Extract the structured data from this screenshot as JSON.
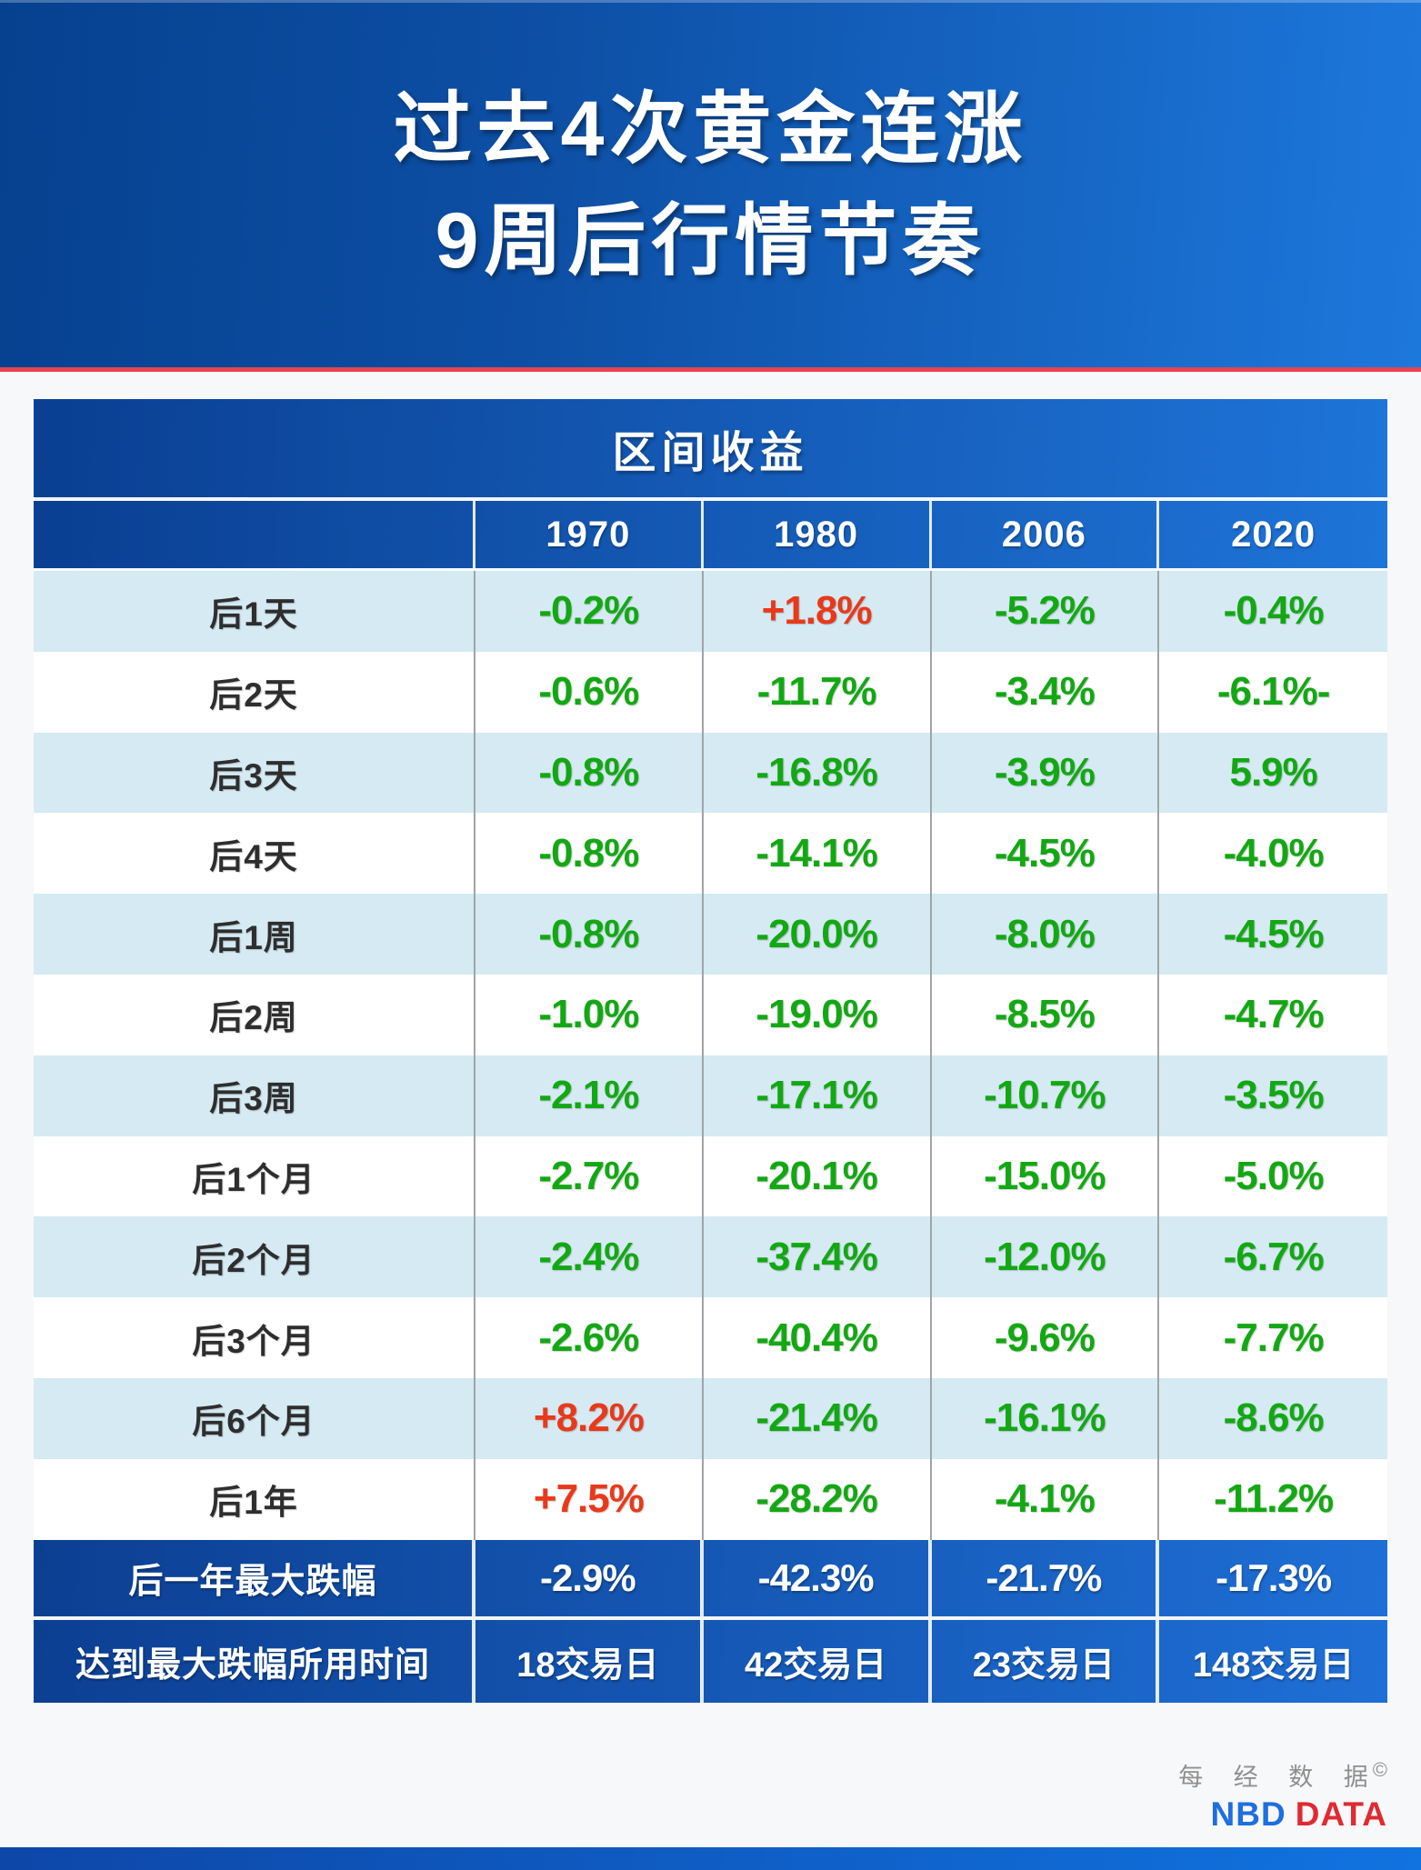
{
  "banner": {
    "line1": "过去4次黄金连涨",
    "line2": "9周后行情节奏"
  },
  "chart_data": {
    "type": "table",
    "title": "过去4次黄金连涨 9周后行情节奏",
    "header": "区间收益",
    "categories": [
      "1970",
      "1980",
      "2006",
      "2020"
    ],
    "rows": [
      {
        "label": "后1天",
        "values": [
          {
            "text": "-0.2%",
            "tone": "green"
          },
          {
            "text": "+1.8%",
            "tone": "red"
          },
          {
            "text": "-5.2%",
            "tone": "green"
          },
          {
            "text": "-0.4%",
            "tone": "green"
          }
        ]
      },
      {
        "label": "后2天",
        "values": [
          {
            "text": "-0.6%",
            "tone": "green"
          },
          {
            "text": "-11.7%",
            "tone": "green"
          },
          {
            "text": "-3.4%",
            "tone": "green"
          },
          {
            "text": "-6.1%-",
            "tone": "green"
          }
        ]
      },
      {
        "label": "后3天",
        "values": [
          {
            "text": "-0.8%",
            "tone": "green"
          },
          {
            "text": "-16.8%",
            "tone": "green"
          },
          {
            "text": "-3.9%",
            "tone": "green"
          },
          {
            "text": "5.9%",
            "tone": "green"
          }
        ]
      },
      {
        "label": "后4天",
        "values": [
          {
            "text": "-0.8%",
            "tone": "green"
          },
          {
            "text": "-14.1%",
            "tone": "green"
          },
          {
            "text": "-4.5%",
            "tone": "green"
          },
          {
            "text": "-4.0%",
            "tone": "green"
          }
        ]
      },
      {
        "label": "后1周",
        "values": [
          {
            "text": "-0.8%",
            "tone": "green"
          },
          {
            "text": "-20.0%",
            "tone": "green"
          },
          {
            "text": "-8.0%",
            "tone": "green"
          },
          {
            "text": "-4.5%",
            "tone": "green"
          }
        ]
      },
      {
        "label": "后2周",
        "values": [
          {
            "text": "-1.0%",
            "tone": "green"
          },
          {
            "text": "-19.0%",
            "tone": "green"
          },
          {
            "text": "-8.5%",
            "tone": "green"
          },
          {
            "text": "-4.7%",
            "tone": "green"
          }
        ]
      },
      {
        "label": "后3周",
        "values": [
          {
            "text": "-2.1%",
            "tone": "green"
          },
          {
            "text": "-17.1%",
            "tone": "green"
          },
          {
            "text": "-10.7%",
            "tone": "green"
          },
          {
            "text": "-3.5%",
            "tone": "green"
          }
        ]
      },
      {
        "label": "后1个月",
        "values": [
          {
            "text": "-2.7%",
            "tone": "green"
          },
          {
            "text": "-20.1%",
            "tone": "green"
          },
          {
            "text": "-15.0%",
            "tone": "green"
          },
          {
            "text": "-5.0%",
            "tone": "green"
          }
        ]
      },
      {
        "label": "后2个月",
        "values": [
          {
            "text": "-2.4%",
            "tone": "green"
          },
          {
            "text": "-37.4%",
            "tone": "green"
          },
          {
            "text": "-12.0%",
            "tone": "green"
          },
          {
            "text": "-6.7%",
            "tone": "green"
          }
        ]
      },
      {
        "label": "后3个月",
        "values": [
          {
            "text": "-2.6%",
            "tone": "green"
          },
          {
            "text": "-40.4%",
            "tone": "green"
          },
          {
            "text": "-9.6%",
            "tone": "green"
          },
          {
            "text": "-7.7%",
            "tone": "green"
          }
        ]
      },
      {
        "label": "后6个月",
        "values": [
          {
            "text": "+8.2%",
            "tone": "red"
          },
          {
            "text": "-21.4%",
            "tone": "green"
          },
          {
            "text": "-16.1%",
            "tone": "green"
          },
          {
            "text": "-8.6%",
            "tone": "green"
          }
        ]
      },
      {
        "label": "后1年",
        "values": [
          {
            "text": "+7.5%",
            "tone": "red"
          },
          {
            "text": "-28.2%",
            "tone": "green"
          },
          {
            "text": "-4.1%",
            "tone": "green"
          },
          {
            "text": "-11.2%",
            "tone": "green"
          }
        ]
      }
    ],
    "summary_rows": [
      {
        "label": "后一年最大跌幅",
        "values": [
          "-2.9%",
          "-42.3%",
          "-21.7%",
          "-17.3%"
        ]
      },
      {
        "label": "达到最大跌幅所用时间",
        "values": [
          "18交易日",
          "42交易日",
          "23交易日",
          "148交易日"
        ]
      }
    ]
  },
  "footer": {
    "brand_cn": "每 经 数 据",
    "copyright": "©",
    "brand_en_blue": "NBD",
    "brand_en_red": "DATA"
  },
  "colors": {
    "banner_left": "#06418f",
    "banner_right": "#1d78dc",
    "divider_red": "#e84350",
    "row_light_bg": "#d5eaf3",
    "value_green": "#13a813",
    "value_red": "#e9391b",
    "table_blue_left": "#0a3f92",
    "table_blue_right": "#1e74d8",
    "brand_gray": "#8f8f8f",
    "brand_nbd_blue": "#1e6fe0",
    "brand_data_red": "#e02a32"
  }
}
